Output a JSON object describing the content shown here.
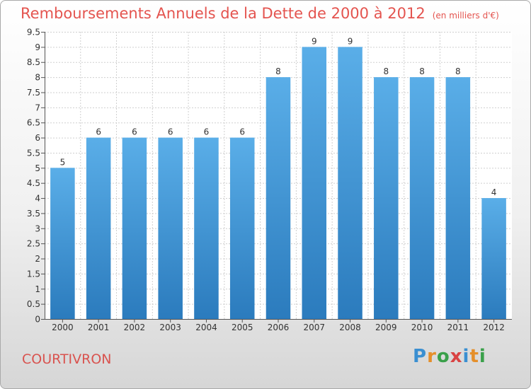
{
  "header": {
    "title": "Remboursements Annuels de la Dette de 2000 à 2012",
    "subtitle": "(en milliers d'€)"
  },
  "footer": {
    "commune": "COURTIVRON",
    "logo_letters": [
      "P",
      "r",
      "o",
      "x",
      "i",
      "t",
      "i"
    ],
    "logo_colors": [
      "#3a8fd1",
      "#e58f2a",
      "#3aa04a",
      "#d94343",
      "#3a8fd1",
      "#e58f2a",
      "#3aa04a"
    ]
  },
  "chart_data": {
    "type": "bar",
    "categories": [
      "2000",
      "2001",
      "2002",
      "2003",
      "2004",
      "2005",
      "2006",
      "2007",
      "2008",
      "2009",
      "2010",
      "2011",
      "2012"
    ],
    "values": [
      5,
      6,
      6,
      6,
      6,
      6,
      8,
      9,
      9,
      8,
      8,
      8,
      4
    ],
    "data_labels": [
      "5",
      "6",
      "6",
      "6",
      "6",
      "6",
      "8",
      "9",
      "9",
      "8",
      "8",
      "8",
      "4"
    ],
    "ylim": [
      0,
      9.5
    ],
    "yticks": [
      0,
      0.5,
      1,
      1.5,
      2,
      2.5,
      3,
      3.5,
      4,
      4.5,
      5,
      5.5,
      6,
      6.5,
      7,
      7.5,
      8,
      8.5,
      9,
      9.5
    ],
    "ytick_labels": [
      "0",
      "0.5",
      "1",
      "1.5",
      "2",
      "2.5",
      "3",
      "3.5",
      "4",
      "4.5",
      "5",
      "5.5",
      "6",
      "6.5",
      "7",
      "7.5",
      "8",
      "8.5",
      "9",
      "9.5"
    ],
    "grid": true,
    "bar_color_top": "#5aaee8",
    "bar_color_bottom": "#2b7bbd",
    "title": "Remboursements Annuels de la Dette de 2000 à 2012",
    "xlabel": "",
    "ylabel": ""
  }
}
